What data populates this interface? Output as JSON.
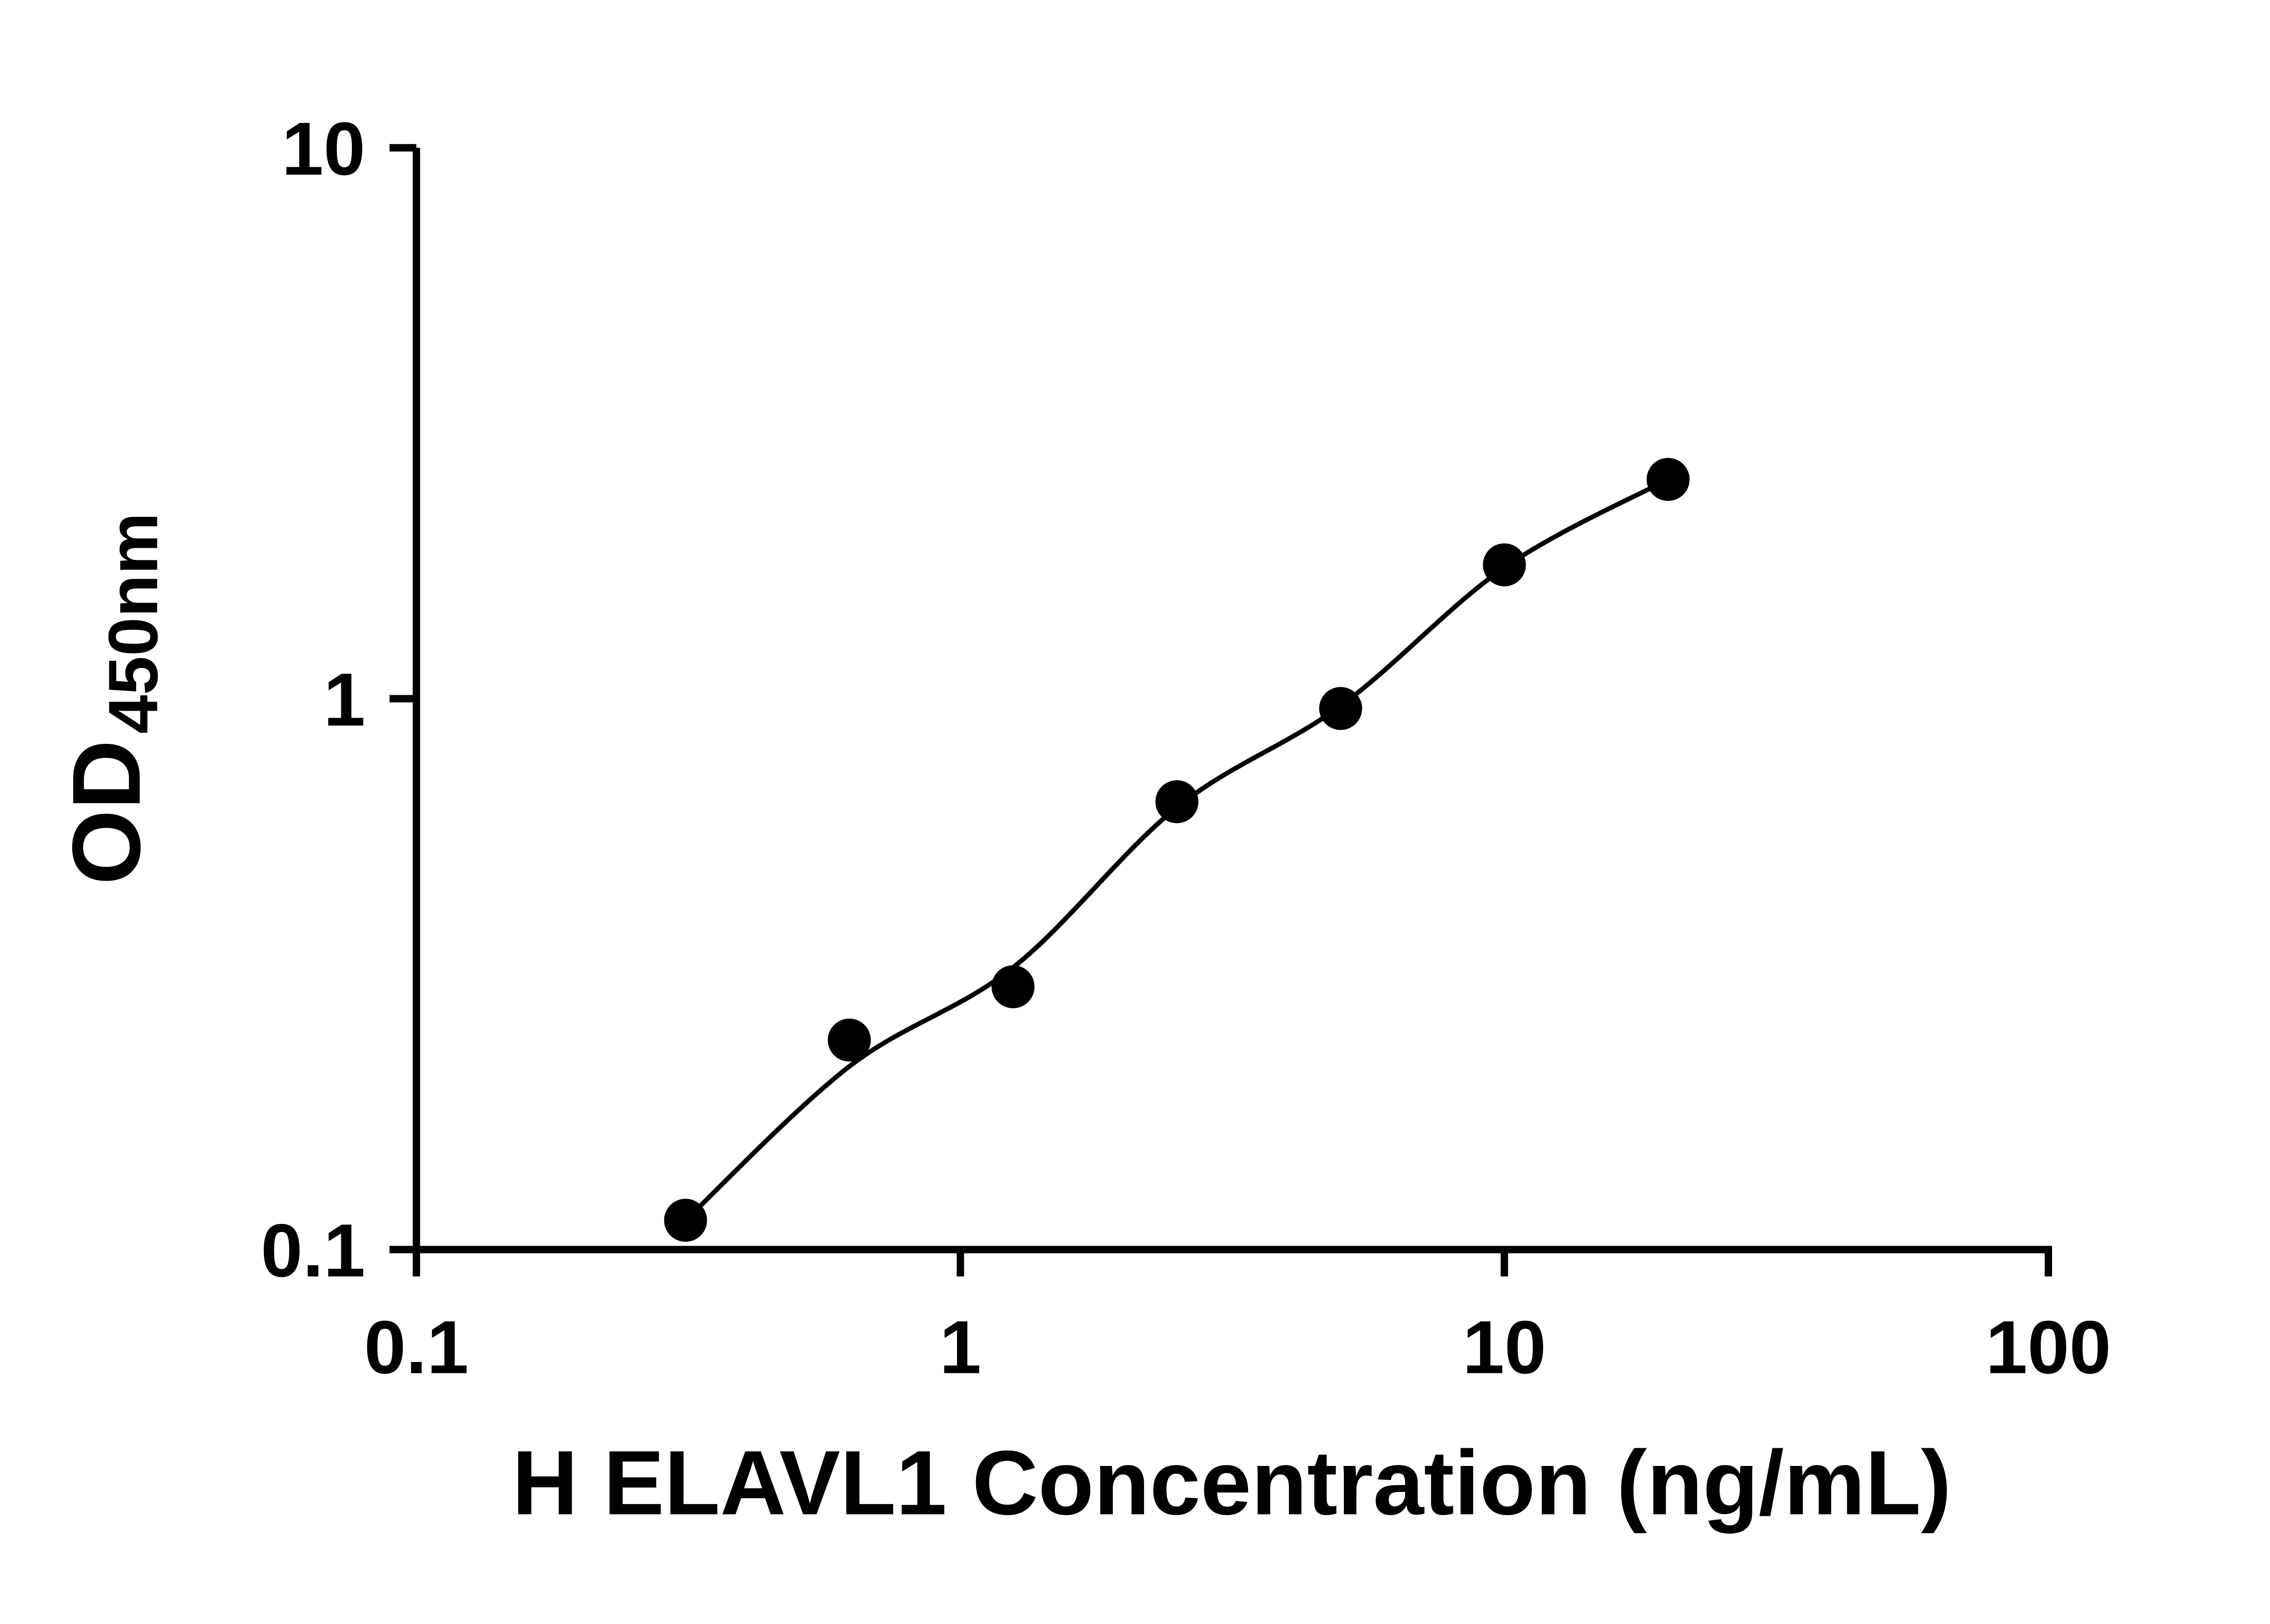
{
  "figure": {
    "background_color": "#ffffff",
    "ink_color": "#000000"
  },
  "chart_data": {
    "type": "scatter",
    "subtype": "ELISA standard curve (scatter points with smooth fitted line)",
    "title": "",
    "xlabel": "H ELAVL1 Concentration (ng/mL)",
    "ylabel": "OD450nm",
    "ylabel_main": "OD",
    "ylabel_subscript": "450nm",
    "x_scale": "log10",
    "y_scale": "log10",
    "xlim": [
      0.1,
      100
    ],
    "ylim": [
      0.1,
      10
    ],
    "grid": false,
    "legend": false,
    "x_ticks": [
      {
        "value": 0.1,
        "label": "0.1"
      },
      {
        "value": 1,
        "label": "1"
      },
      {
        "value": 10,
        "label": "10"
      },
      {
        "value": 100,
        "label": "100"
      }
    ],
    "y_ticks": [
      {
        "value": 0.1,
        "label": "0.1"
      },
      {
        "value": 1,
        "label": "1"
      },
      {
        "value": 10,
        "label": "10"
      }
    ],
    "series": [
      {
        "name": "standard-curve-points",
        "marker": "filled-circle",
        "color": "#000000",
        "points": [
          {
            "x": 0.3125,
            "y": 0.113
          },
          {
            "x": 0.625,
            "y": 0.24
          },
          {
            "x": 1.25,
            "y": 0.3
          },
          {
            "x": 2.5,
            "y": 0.65
          },
          {
            "x": 5,
            "y": 0.96
          },
          {
            "x": 10,
            "y": 1.75
          },
          {
            "x": 20,
            "y": 2.5
          }
        ]
      }
    ],
    "fit_curve": {
      "name": "four-parameter-fit-line",
      "color": "#000000",
      "points": [
        {
          "x": 0.3125,
          "y": 0.113
        },
        {
          "x": 0.625,
          "y": 0.215
        },
        {
          "x": 1.25,
          "y": 0.325
        },
        {
          "x": 2.5,
          "y": 0.635
        },
        {
          "x": 5,
          "y": 0.97
        },
        {
          "x": 10,
          "y": 1.73
        },
        {
          "x": 20,
          "y": 2.5
        }
      ]
    }
  }
}
